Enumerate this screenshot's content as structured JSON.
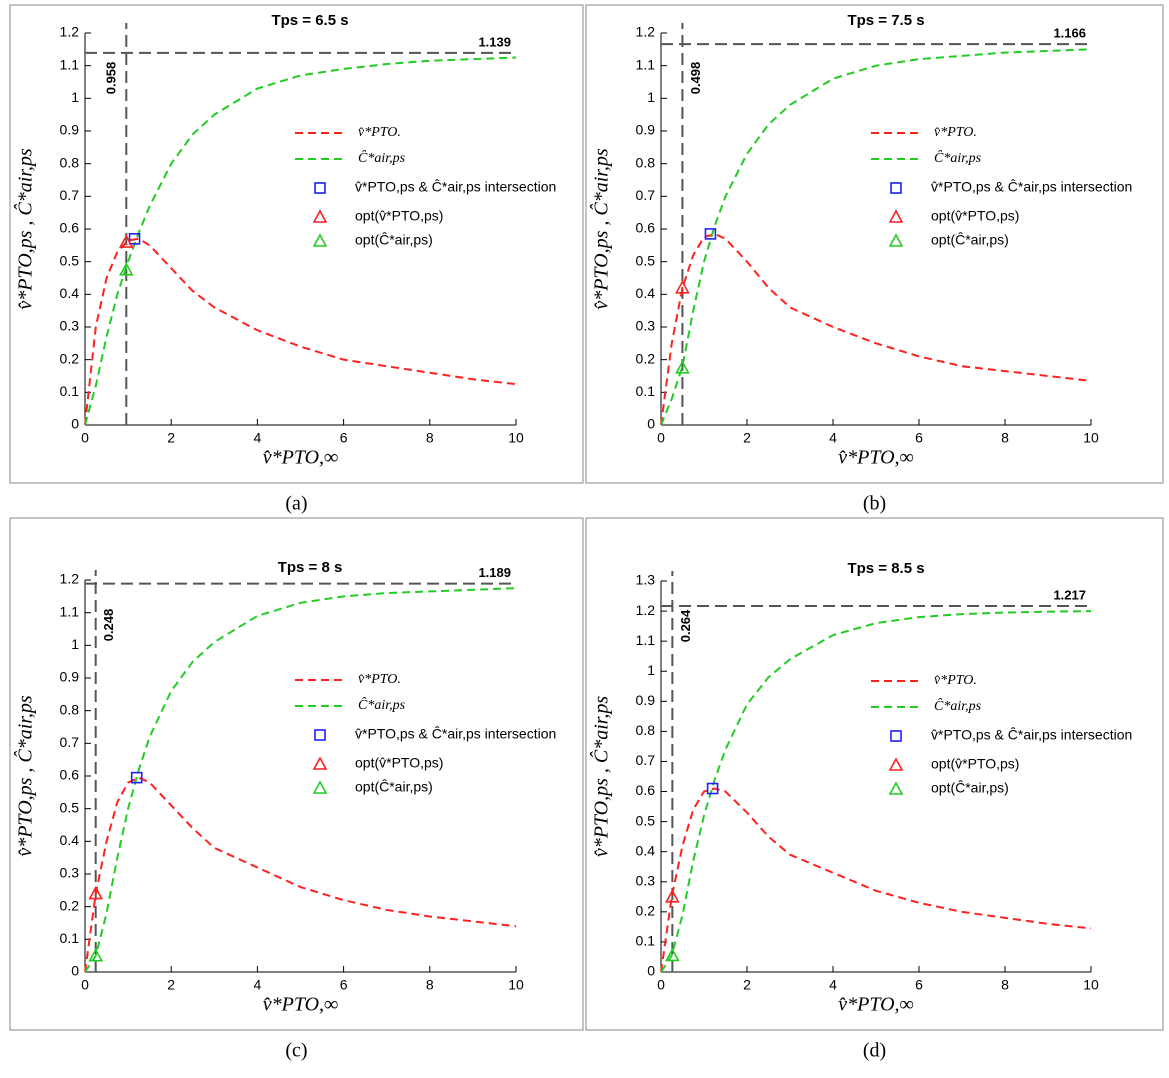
{
  "chart_data": [
    {
      "type": "line",
      "panel": "(a)",
      "title": "Tps = 6.5 s",
      "xlabel": "v̂*PTO,∞",
      "ylabel": "v̂*PTO,ps , Ĉ*air,ps",
      "xlim": [
        0,
        10
      ],
      "xticks": [
        0,
        2,
        4,
        6,
        8,
        10
      ],
      "ylim": [
        0,
        1.2
      ],
      "yticks": [
        0,
        0.1,
        0.2,
        0.3,
        0.4,
        0.5,
        0.6,
        0.7,
        0.8,
        0.9,
        1,
        1.1,
        1.2
      ],
      "x": [
        0,
        0.25,
        0.5,
        0.75,
        1,
        1.25,
        1.5,
        2,
        2.5,
        3,
        4,
        5,
        6,
        7,
        8,
        9,
        10
      ],
      "series": [
        {
          "name": "v̂*PTO.",
          "color": "#ff2020",
          "values": [
            0,
            0.3,
            0.45,
            0.53,
            0.565,
            0.57,
            0.55,
            0.48,
            0.41,
            0.36,
            0.29,
            0.24,
            0.2,
            0.18,
            0.16,
            0.14,
            0.125
          ]
        },
        {
          "name": "Ĉ*air,ps",
          "color": "#22cc22",
          "values": [
            0,
            0.12,
            0.27,
            0.4,
            0.5,
            0.59,
            0.67,
            0.8,
            0.89,
            0.95,
            1.03,
            1.07,
            1.09,
            1.105,
            1.115,
            1.12,
            1.125
          ]
        }
      ],
      "points": [
        {
          "name": "v̂*PTO,ps & Ĉ*air,ps  intersection",
          "color": "#2020ff",
          "marker": "square",
          "x": 1.15,
          "y": 0.57
        },
        {
          "name": "opt(v̂*PTO,ps)",
          "color": "#ff2020",
          "marker": "triangle",
          "x": 0.958,
          "y": 0.56
        },
        {
          "name": "opt(Ĉ*air,ps)",
          "color": "#22cc22",
          "marker": "triangle",
          "x": 0.958,
          "y": 0.475
        }
      ],
      "hline": 1.139,
      "vline": 0.958
    },
    {
      "type": "line",
      "panel": "(b)",
      "title": "Tps = 7.5 s",
      "xlabel": "v̂*PTO,∞",
      "ylabel": "v̂*PTO,ps , Ĉ*air,ps",
      "xlim": [
        0,
        10
      ],
      "xticks": [
        0,
        2,
        4,
        6,
        8,
        10
      ],
      "ylim": [
        0,
        1.2
      ],
      "yticks": [
        0,
        0.1,
        0.2,
        0.3,
        0.4,
        0.5,
        0.6,
        0.7,
        0.8,
        0.9,
        1,
        1.1,
        1.2
      ],
      "x": [
        0,
        0.25,
        0.5,
        0.75,
        1,
        1.25,
        1.5,
        2,
        2.5,
        3,
        4,
        5,
        6,
        7,
        8,
        9,
        10
      ],
      "series": [
        {
          "name": "v̂*PTO.",
          "color": "#ff2020",
          "values": [
            0,
            0.25,
            0.42,
            0.52,
            0.575,
            0.585,
            0.57,
            0.5,
            0.42,
            0.36,
            0.3,
            0.25,
            0.21,
            0.18,
            0.165,
            0.15,
            0.135
          ]
        },
        {
          "name": "Ĉ*air,ps",
          "color": "#22cc22",
          "values": [
            0,
            0.08,
            0.18,
            0.35,
            0.5,
            0.61,
            0.7,
            0.83,
            0.92,
            0.98,
            1.06,
            1.1,
            1.12,
            1.13,
            1.14,
            1.145,
            1.15
          ]
        }
      ],
      "points": [
        {
          "name": "v̂*PTO,ps & Ĉ*air,ps  intersection",
          "color": "#2020ff",
          "marker": "square",
          "x": 1.15,
          "y": 0.585
        },
        {
          "name": "opt(v̂*PTO,ps)",
          "color": "#ff2020",
          "marker": "triangle",
          "x": 0.498,
          "y": 0.42
        },
        {
          "name": "opt(Ĉ*air,ps)",
          "color": "#22cc22",
          "marker": "triangle",
          "x": 0.498,
          "y": 0.175
        }
      ],
      "hline": 1.166,
      "vline": 0.498
    },
    {
      "type": "line",
      "panel": "(c)",
      "title": "Tps = 8 s",
      "xlabel": "v̂*PTO,∞",
      "ylabel": "v̂*PTO,ps , Ĉ*air,ps",
      "xlim": [
        0,
        10
      ],
      "xticks": [
        0,
        2,
        4,
        6,
        8,
        10
      ],
      "ylim": [
        0,
        1.2
      ],
      "yticks": [
        0,
        0.1,
        0.2,
        0.3,
        0.4,
        0.5,
        0.6,
        0.7,
        0.8,
        0.9,
        1,
        1.1,
        1.2
      ],
      "x": [
        0,
        0.25,
        0.5,
        0.75,
        1,
        1.25,
        1.5,
        2,
        2.5,
        3,
        4,
        5,
        6,
        7,
        8,
        9,
        10
      ],
      "series": [
        {
          "name": "v̂*PTO.",
          "color": "#ff2020",
          "values": [
            0,
            0.24,
            0.4,
            0.52,
            0.58,
            0.595,
            0.58,
            0.51,
            0.44,
            0.38,
            0.32,
            0.26,
            0.22,
            0.19,
            0.17,
            0.155,
            0.14
          ]
        },
        {
          "name": "Ĉ*air,ps",
          "color": "#22cc22",
          "values": [
            0,
            0.05,
            0.18,
            0.35,
            0.5,
            0.62,
            0.72,
            0.86,
            0.95,
            1.01,
            1.09,
            1.13,
            1.15,
            1.16,
            1.165,
            1.17,
            1.175
          ]
        }
      ],
      "points": [
        {
          "name": "v̂*PTO,ps & Ĉ*air,ps  intersection",
          "color": "#2020ff",
          "marker": "square",
          "x": 1.2,
          "y": 0.595
        },
        {
          "name": "opt(v̂*PTO,ps)",
          "color": "#ff2020",
          "marker": "triangle",
          "x": 0.248,
          "y": 0.24
        },
        {
          "name": "opt(Ĉ*air,ps)",
          "color": "#22cc22",
          "marker": "triangle",
          "x": 0.248,
          "y": 0.05
        }
      ],
      "hline": 1.189,
      "vline": 0.248
    },
    {
      "type": "line",
      "panel": "(d)",
      "title": "Tps = 8.5 s",
      "xlabel": "v̂*PTO,∞",
      "ylabel": "v̂*PTO,ps , Ĉ*air,ps",
      "xlim": [
        0,
        10
      ],
      "xticks": [
        0,
        2,
        4,
        6,
        8,
        10
      ],
      "ylim": [
        0,
        1.3
      ],
      "yticks": [
        0,
        0.1,
        0.2,
        0.3,
        0.4,
        0.5,
        0.6,
        0.7,
        0.8,
        0.9,
        1,
        1.1,
        1.2,
        1.3
      ],
      "x": [
        0,
        0.25,
        0.5,
        0.75,
        1,
        1.25,
        1.5,
        2,
        2.5,
        3,
        4,
        5,
        6,
        7,
        8,
        9,
        10
      ],
      "series": [
        {
          "name": "v̂*PTO.",
          "color": "#ff2020",
          "values": [
            0,
            0.25,
            0.42,
            0.54,
            0.6,
            0.61,
            0.6,
            0.53,
            0.45,
            0.39,
            0.33,
            0.27,
            0.23,
            0.2,
            0.18,
            0.16,
            0.145
          ]
        },
        {
          "name": "Ĉ*air,ps",
          "color": "#22cc22",
          "values": [
            0,
            0.055,
            0.19,
            0.37,
            0.52,
            0.64,
            0.74,
            0.89,
            0.98,
            1.04,
            1.12,
            1.16,
            1.18,
            1.19,
            1.195,
            1.198,
            1.2
          ]
        }
      ],
      "points": [
        {
          "name": "v̂*PTO,ps & Ĉ*air,ps  intersection",
          "color": "#2020ff",
          "marker": "square",
          "x": 1.2,
          "y": 0.61
        },
        {
          "name": "opt(v̂*PTO,ps)",
          "color": "#ff2020",
          "marker": "triangle",
          "x": 0.264,
          "y": 0.25
        },
        {
          "name": "opt(Ĉ*air,ps)",
          "color": "#22cc22",
          "marker": "triangle",
          "x": 0.264,
          "y": 0.055
        }
      ],
      "hline": 1.217,
      "vline": 0.264
    }
  ]
}
